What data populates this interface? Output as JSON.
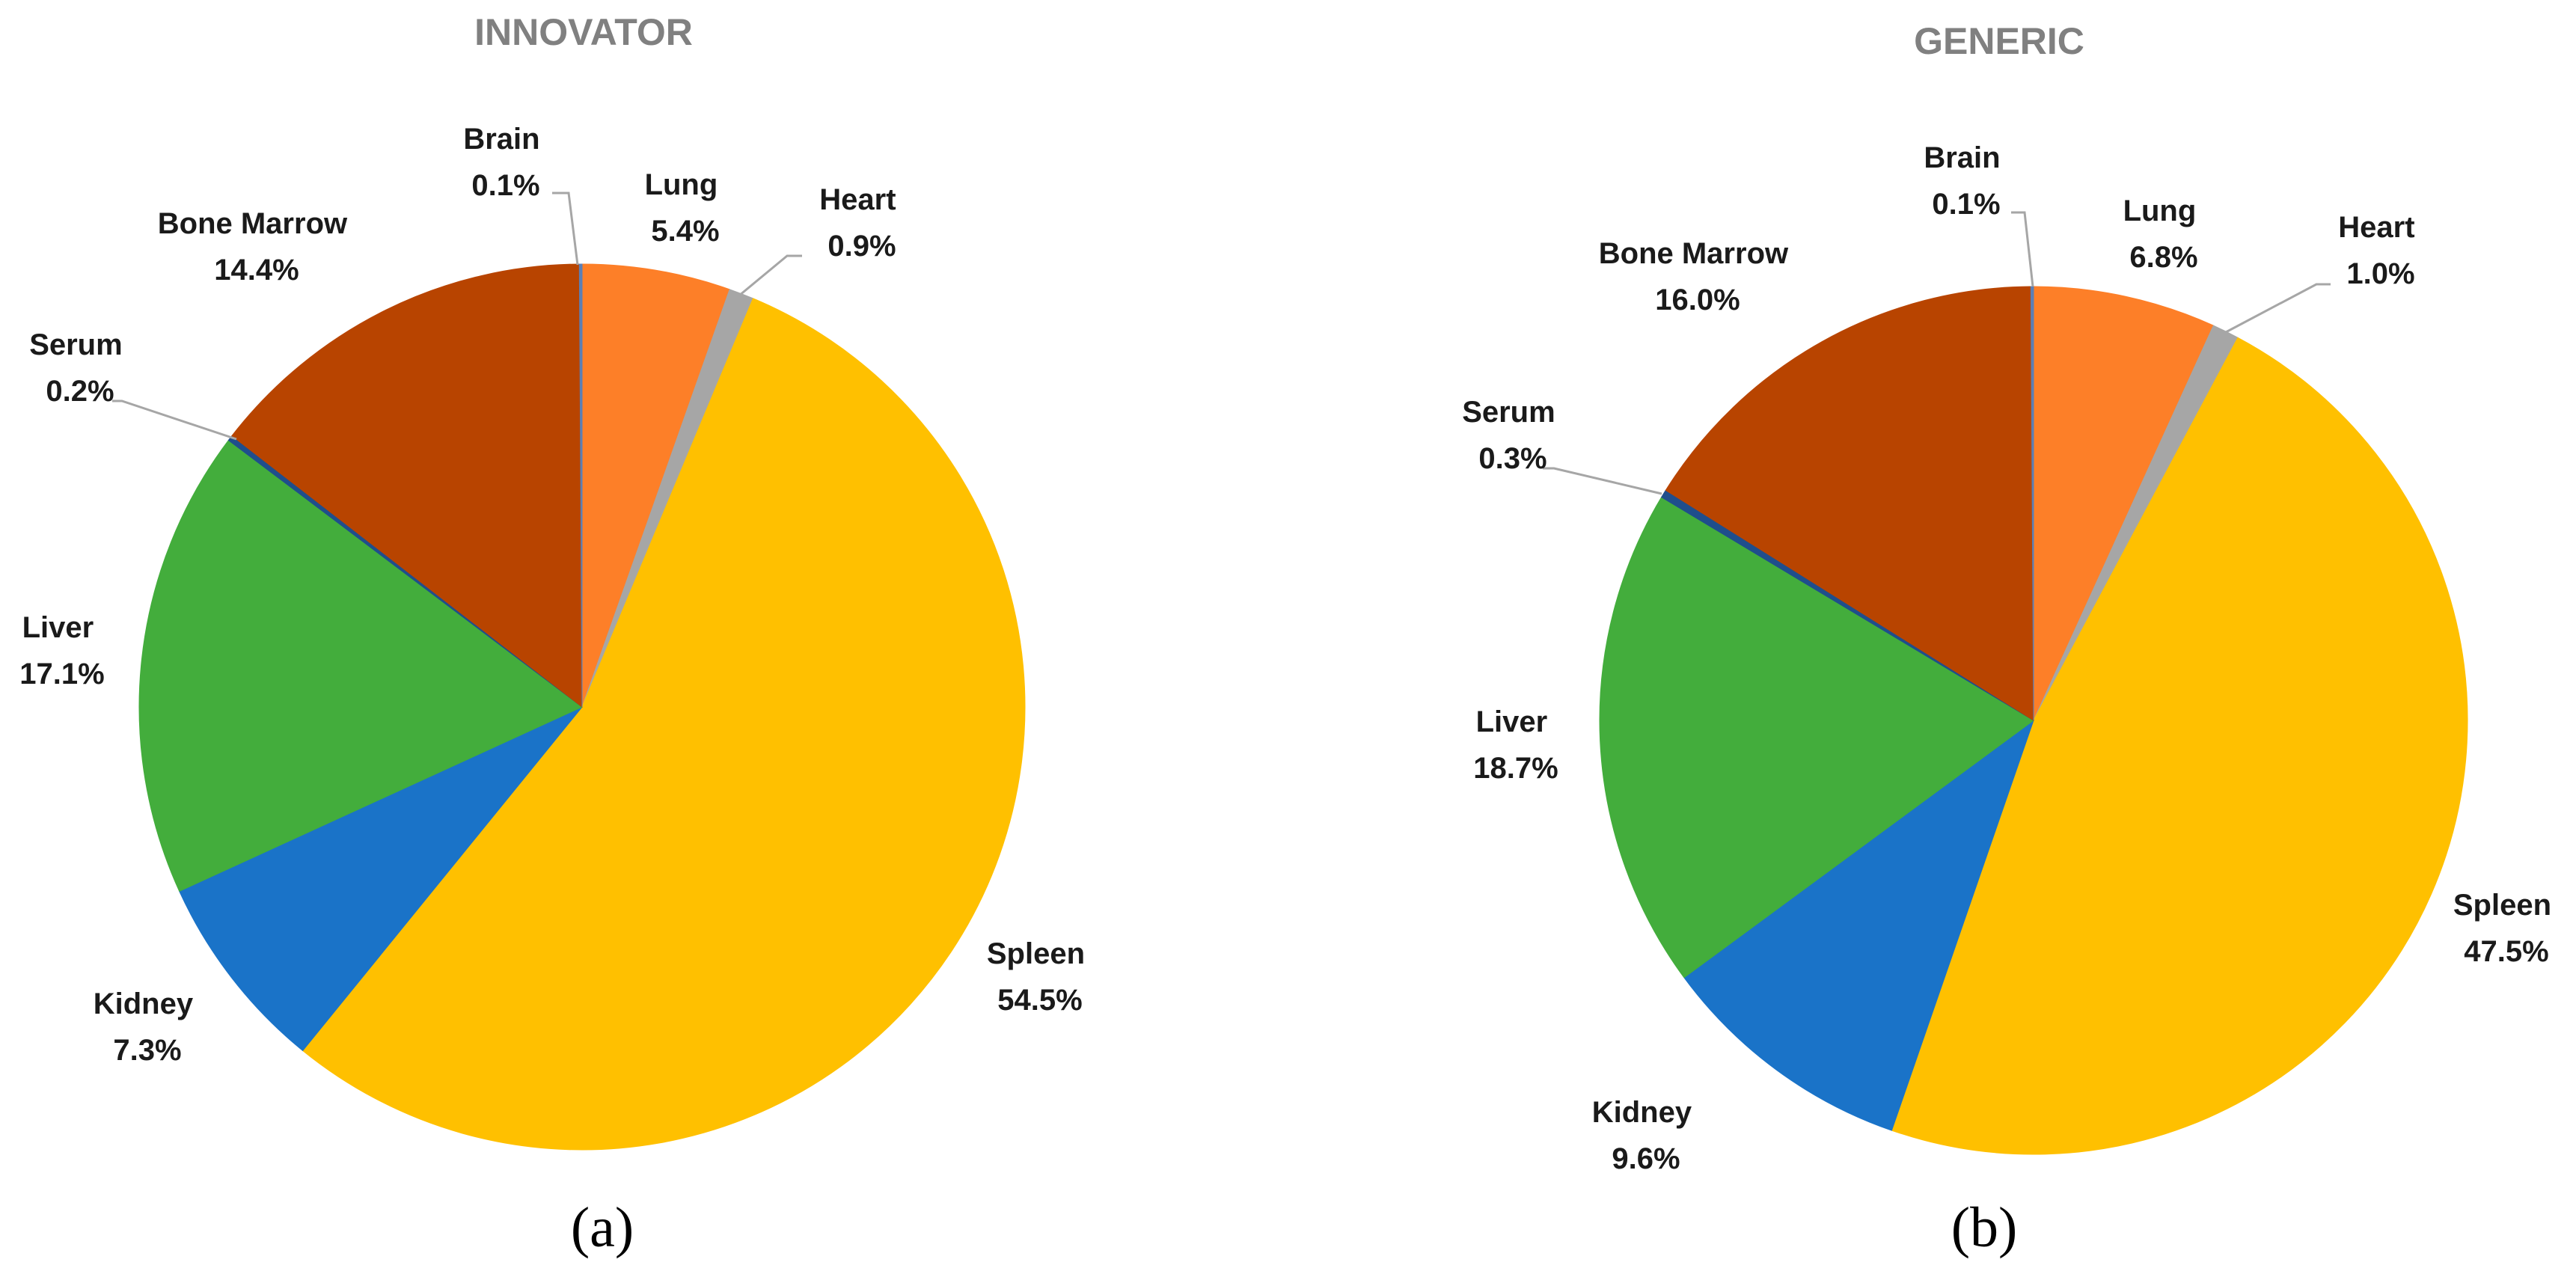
{
  "chart_data": [
    {
      "type": "pie",
      "title": "INNOVATOR",
      "caption": "(a)",
      "slices": [
        {
          "label": "Lung",
          "value": 5.4,
          "value_label": "5.4%",
          "color": "#fd7f28"
        },
        {
          "label": "Heart",
          "value": 0.9,
          "value_label": "0.9%",
          "color": "#a6a6a6"
        },
        {
          "label": "Spleen",
          "value": 54.5,
          "value_label": "54.5%",
          "color": "#ffc000"
        },
        {
          "label": "Kidney",
          "value": 7.3,
          "value_label": "7.3%",
          "color": "#1a73c8"
        },
        {
          "label": "Liver",
          "value": 17.1,
          "value_label": "17.1%",
          "color": "#43ad3c"
        },
        {
          "label": "Serum",
          "value": 0.2,
          "value_label": "0.2%",
          "color": "#1f4e8c"
        },
        {
          "label": "Bone Marrow",
          "value": 14.4,
          "value_label": "14.4%",
          "color": "#b84400"
        },
        {
          "label": "Brain",
          "value": 0.1,
          "value_label": "0.1%",
          "color": "#5b7fb5"
        }
      ]
    },
    {
      "type": "pie",
      "title": "GENERIC",
      "caption": "(b)",
      "slices": [
        {
          "label": "Lung",
          "value": 6.8,
          "value_label": "6.8%",
          "color": "#fd7f28"
        },
        {
          "label": "Heart",
          "value": 1.0,
          "value_label": "1.0%",
          "color": "#a6a6a6"
        },
        {
          "label": "Spleen",
          "value": 47.5,
          "value_label": "47.5%",
          "color": "#ffc000"
        },
        {
          "label": "Kidney",
          "value": 9.6,
          "value_label": "9.6%",
          "color": "#1a73c8"
        },
        {
          "label": "Liver",
          "value": 18.7,
          "value_label": "18.7%",
          "color": "#43ad3c"
        },
        {
          "label": "Serum",
          "value": 0.3,
          "value_label": "0.3%",
          "color": "#1f4e8c"
        },
        {
          "label": "Bone Marrow",
          "value": 16.0,
          "value_label": "16.0%",
          "color": "#b84400"
        },
        {
          "label": "Brain",
          "value": 0.1,
          "value_label": "0.1%",
          "color": "#5b7fb5"
        }
      ]
    }
  ]
}
